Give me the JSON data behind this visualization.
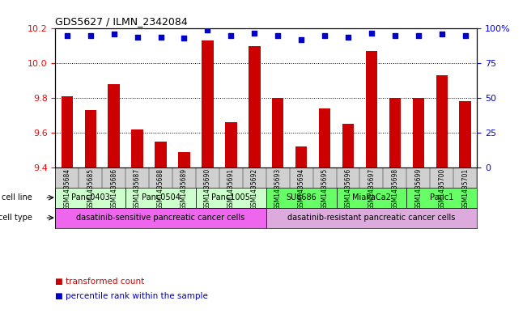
{
  "title": "GDS5627 / ILMN_2342084",
  "samples": [
    "GSM1435684",
    "GSM1435685",
    "GSM1435686",
    "GSM1435687",
    "GSM1435688",
    "GSM1435689",
    "GSM1435690",
    "GSM1435691",
    "GSM1435692",
    "GSM1435693",
    "GSM1435694",
    "GSM1435695",
    "GSM1435696",
    "GSM1435697",
    "GSM1435698",
    "GSM1435699",
    "GSM1435700",
    "GSM1435701"
  ],
  "bar_values": [
    9.81,
    9.73,
    9.88,
    9.62,
    9.55,
    9.49,
    10.13,
    9.66,
    10.1,
    9.8,
    9.52,
    9.74,
    9.65,
    10.07,
    9.8,
    9.8,
    9.93,
    9.78
  ],
  "percentile_values": [
    95,
    95,
    96,
    94,
    94,
    93,
    99,
    95,
    97,
    95,
    92,
    95,
    94,
    97,
    95,
    95,
    96,
    95
  ],
  "ylim_left": [
    9.4,
    10.2
  ],
  "ylim_right": [
    0,
    100
  ],
  "yticks_left": [
    9.4,
    9.6,
    9.8,
    10.0,
    10.2
  ],
  "yticks_right": [
    0,
    25,
    50,
    75,
    100
  ],
  "ytick_right_labels": [
    "0",
    "25",
    "50",
    "75",
    "100%"
  ],
  "bar_color": "#cc0000",
  "percentile_color": "#0000cc",
  "cell_lines": [
    {
      "label": "Panc0403",
      "start": 0,
      "end": 3,
      "color": "#ccffcc"
    },
    {
      "label": "Panc0504",
      "start": 3,
      "end": 6,
      "color": "#ccffcc"
    },
    {
      "label": "Panc1005",
      "start": 6,
      "end": 9,
      "color": "#ccffcc"
    },
    {
      "label": "SU8686",
      "start": 9,
      "end": 12,
      "color": "#66ff66"
    },
    {
      "label": "MiaPaCa2",
      "start": 12,
      "end": 15,
      "color": "#66ff66"
    },
    {
      "label": "Panc1",
      "start": 15,
      "end": 18,
      "color": "#66ff66"
    }
  ],
  "cell_types": [
    {
      "label": "dasatinib-sensitive pancreatic cancer cells",
      "start": 0,
      "end": 9,
      "color": "#ee66ee"
    },
    {
      "label": "dasatinib-resistant pancreatic cancer cells",
      "start": 9,
      "end": 18,
      "color": "#ddaadd"
    }
  ],
  "legend_red": "transformed count",
  "legend_blue": "percentile rank within the sample",
  "bar_color_legend": "#cc0000",
  "pct_color_legend": "#0000cc",
  "xtick_bg": "#d0d0d0",
  "fig_bg": "#ffffff"
}
